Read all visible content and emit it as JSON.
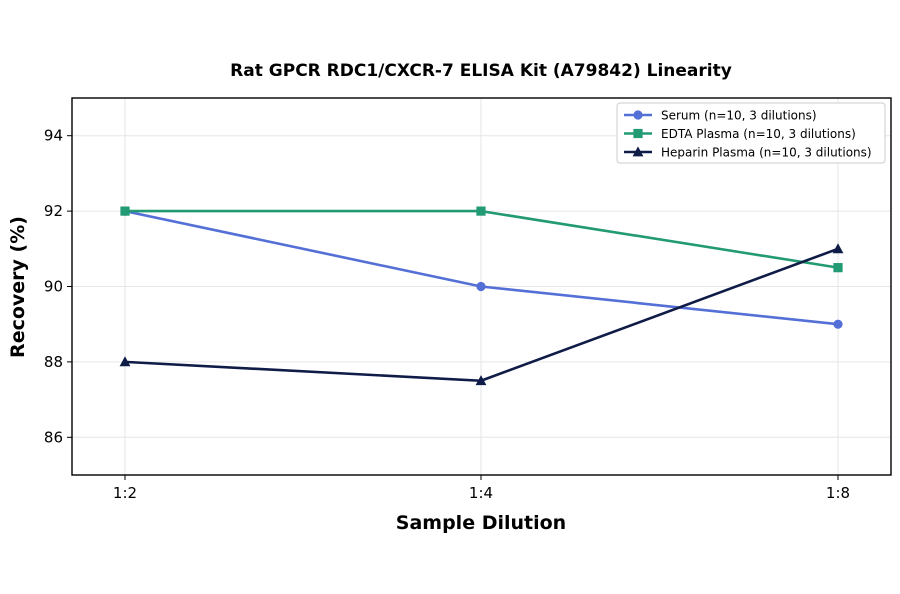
{
  "chart_data": {
    "type": "line",
    "title": "Rat GPCR RDC1/CXCR-7 ELISA Kit (A79842) Linearity",
    "xlabel": "Sample Dilution",
    "ylabel": "Recovery (%)",
    "categories": [
      "1:2",
      "1:4",
      "1:8"
    ],
    "ylim": [
      85,
      95
    ],
    "yticks": [
      86,
      88,
      90,
      92,
      94
    ],
    "grid": true,
    "legend_position": "top-right",
    "series": [
      {
        "name": "Serum (n=10, 3 dilutions)",
        "values": [
          92,
          90,
          89
        ],
        "color": "#5470d6",
        "marker": "circle"
      },
      {
        "name": "EDTA Plasma (n=10, 3 dilutions)",
        "values": [
          92,
          92,
          90.5
        ],
        "color": "#229a73",
        "marker": "square"
      },
      {
        "name": "Heparin Plasma (n=10, 3 dilutions)",
        "values": [
          88,
          87.5,
          91
        ],
        "color": "#0f1c47",
        "marker": "triangle"
      }
    ]
  }
}
